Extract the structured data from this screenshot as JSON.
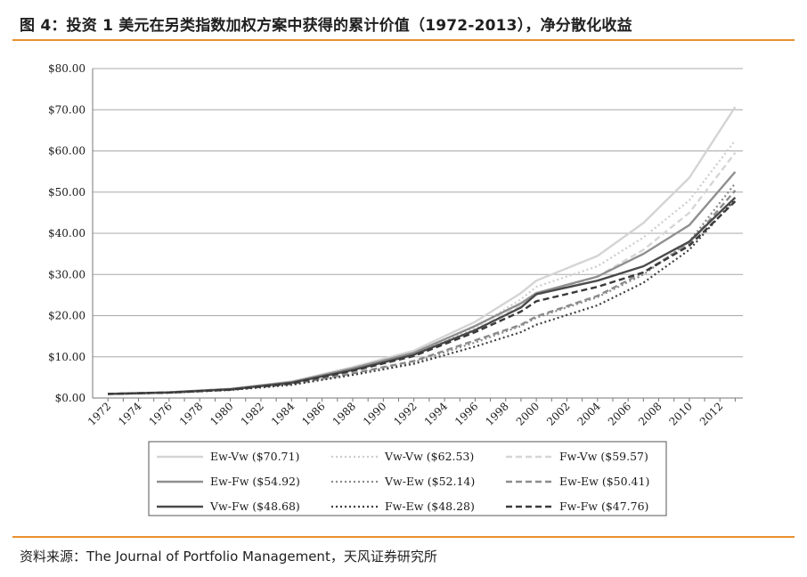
{
  "figure": {
    "title": "图 4：投资 1 美元在另类指数加权方案中获得的累计价值（1972-2013），净分散化收益",
    "source": "资料来源：The Journal of Portfolio Management，天风证券研究所"
  },
  "chart_data": {
    "type": "line",
    "title": "图 4：投资 1 美元在另类指数加权方案中获得的累计价值（1972-2013），净分散化收益",
    "xlabel": "",
    "ylabel": "",
    "grid": true,
    "legend_position": "bottom",
    "xlim": [
      1971,
      2013.5
    ],
    "ylim": [
      0,
      80
    ],
    "y_ticks": [
      "$0.00",
      "$10.00",
      "$20.00",
      "$30.00",
      "$40.00",
      "$50.00",
      "$60.00",
      "$70.00",
      "$80.00"
    ],
    "x_ticks": [
      "1972",
      "1974",
      "1976",
      "1978",
      "1980",
      "1982",
      "1984",
      "1986",
      "1988",
      "1990",
      "1992",
      "1994",
      "1996",
      "1998",
      "2000",
      "2002",
      "2004",
      "2006",
      "2008",
      "2010",
      "2012"
    ],
    "x": [
      1972,
      1976,
      1980,
      1984,
      1988,
      1992,
      1996,
      1999,
      2000,
      2004,
      2007,
      2010,
      2013
    ],
    "series": [
      {
        "name": "Ew-Vw ($70.71)",
        "color": "#d4d4d4",
        "dash": "solid",
        "values": [
          1,
          1.4,
          2.2,
          4.0,
          7.5,
          11.5,
          18.5,
          25.5,
          28.5,
          34.5,
          42.5,
          53.5,
          70.71
        ]
      },
      {
        "name": "Vw-Vw ($62.53)",
        "color": "#cdcdcd",
        "dash": "dot",
        "values": [
          1,
          1.35,
          2.1,
          3.7,
          6.8,
          10.5,
          17.0,
          24.0,
          27.0,
          32.0,
          39.0,
          48.0,
          62.53
        ]
      },
      {
        "name": "Fw-Vw ($59.57)",
        "color": "#d6d6d6",
        "dash": "dash",
        "values": [
          1,
          1.35,
          2.1,
          3.6,
          6.5,
          10.2,
          16.5,
          22.5,
          25.0,
          29.5,
          36.0,
          45.0,
          59.57
        ]
      },
      {
        "name": "Ew-Fw ($54.92)",
        "color": "#8f8f8f",
        "dash": "solid",
        "values": [
          1,
          1.38,
          2.2,
          3.9,
          7.2,
          11.0,
          17.5,
          23.0,
          25.5,
          29.5,
          35.0,
          42.0,
          54.92
        ]
      },
      {
        "name": "Vw-Ew ($52.14)",
        "color": "#8a8a8a",
        "dash": "dot",
        "values": [
          1,
          1.3,
          2.0,
          3.3,
          5.8,
          8.7,
          13.5,
          17.5,
          19.5,
          24.5,
          30.0,
          38.0,
          52.14
        ]
      },
      {
        "name": "Ew-Ew ($50.41)",
        "color": "#8c8c8c",
        "dash": "dash",
        "values": [
          1,
          1.3,
          2.0,
          3.4,
          6.0,
          9.0,
          14.0,
          17.8,
          19.8,
          24.8,
          30.5,
          37.5,
          50.41
        ]
      },
      {
        "name": "Vw-Fw ($48.68)",
        "color": "#4a4a4a",
        "dash": "solid",
        "values": [
          1,
          1.35,
          2.1,
          3.7,
          6.8,
          10.5,
          16.5,
          22.0,
          25.2,
          28.5,
          32.0,
          38.0,
          48.68
        ]
      },
      {
        "name": "Fw-Ew ($48.28)",
        "color": "#3e3e3e",
        "dash": "dot",
        "values": [
          1,
          1.28,
          1.95,
          3.2,
          5.6,
          8.3,
          12.5,
          16.0,
          17.8,
          22.5,
          28.0,
          36.0,
          48.28
        ]
      },
      {
        "name": "Fw-Fw ($47.76)",
        "color": "#3a3a3a",
        "dash": "dash",
        "values": [
          1,
          1.33,
          2.05,
          3.6,
          6.6,
          10.2,
          16.0,
          21.0,
          23.5,
          27.0,
          30.5,
          37.0,
          47.76
        ]
      }
    ]
  }
}
